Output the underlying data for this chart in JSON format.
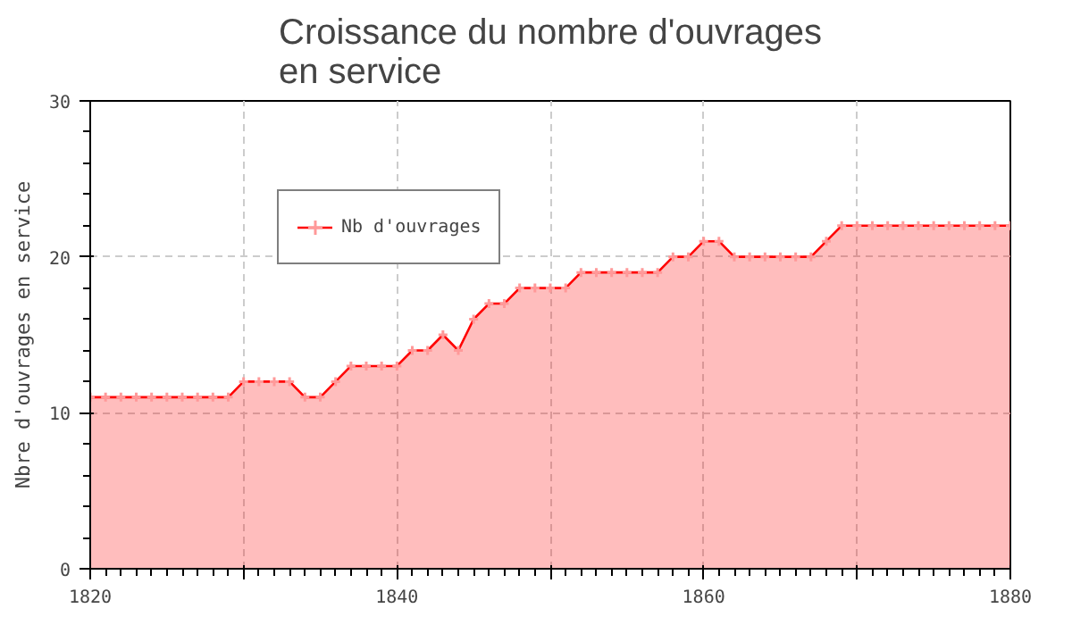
{
  "chart_data": {
    "type": "area",
    "title": "Croissance du nombre d'ouvrages\nen service",
    "ylabel": "Nbre d'ouvrages en service",
    "x": [
      1820,
      1821,
      1822,
      1823,
      1824,
      1825,
      1826,
      1827,
      1828,
      1829,
      1830,
      1831,
      1832,
      1833,
      1834,
      1835,
      1836,
      1837,
      1838,
      1839,
      1840,
      1841,
      1842,
      1843,
      1844,
      1845,
      1846,
      1847,
      1848,
      1849,
      1850,
      1851,
      1852,
      1853,
      1854,
      1855,
      1856,
      1857,
      1858,
      1859,
      1860,
      1861,
      1862,
      1863,
      1864,
      1865,
      1866,
      1867,
      1868,
      1869,
      1870,
      1871,
      1872,
      1873,
      1874,
      1875,
      1876,
      1877,
      1878,
      1879,
      1880
    ],
    "series": [
      {
        "name": "Nb d'ouvrages",
        "color": "#ff0000",
        "values": [
          11,
          11,
          11,
          11,
          11,
          11,
          11,
          11,
          11,
          11,
          12,
          12,
          12,
          12,
          11,
          11,
          12,
          13,
          13,
          13,
          13,
          14,
          14,
          15,
          14,
          16,
          17,
          17,
          18,
          18,
          18,
          18,
          19,
          19,
          19,
          19,
          19,
          19,
          20,
          20,
          21,
          21,
          20,
          20,
          20,
          20,
          20,
          20,
          21,
          22,
          22,
          22,
          22,
          22,
          22,
          22,
          22,
          22,
          22,
          22,
          22
        ]
      }
    ],
    "xlim": [
      1820,
      1880
    ],
    "ylim": [
      0,
      30
    ],
    "xticks": [
      1820,
      {
        "value": 1830,
        "label": null
      },
      1840,
      {
        "value": 1850,
        "label": null
      },
      1860,
      {
        "value": 1870,
        "label": null
      },
      1880
    ],
    "yticks": [
      0,
      10,
      20,
      30
    ],
    "grid": true,
    "legend": "top left",
    "marker": "cross",
    "line_style": "solid"
  }
}
